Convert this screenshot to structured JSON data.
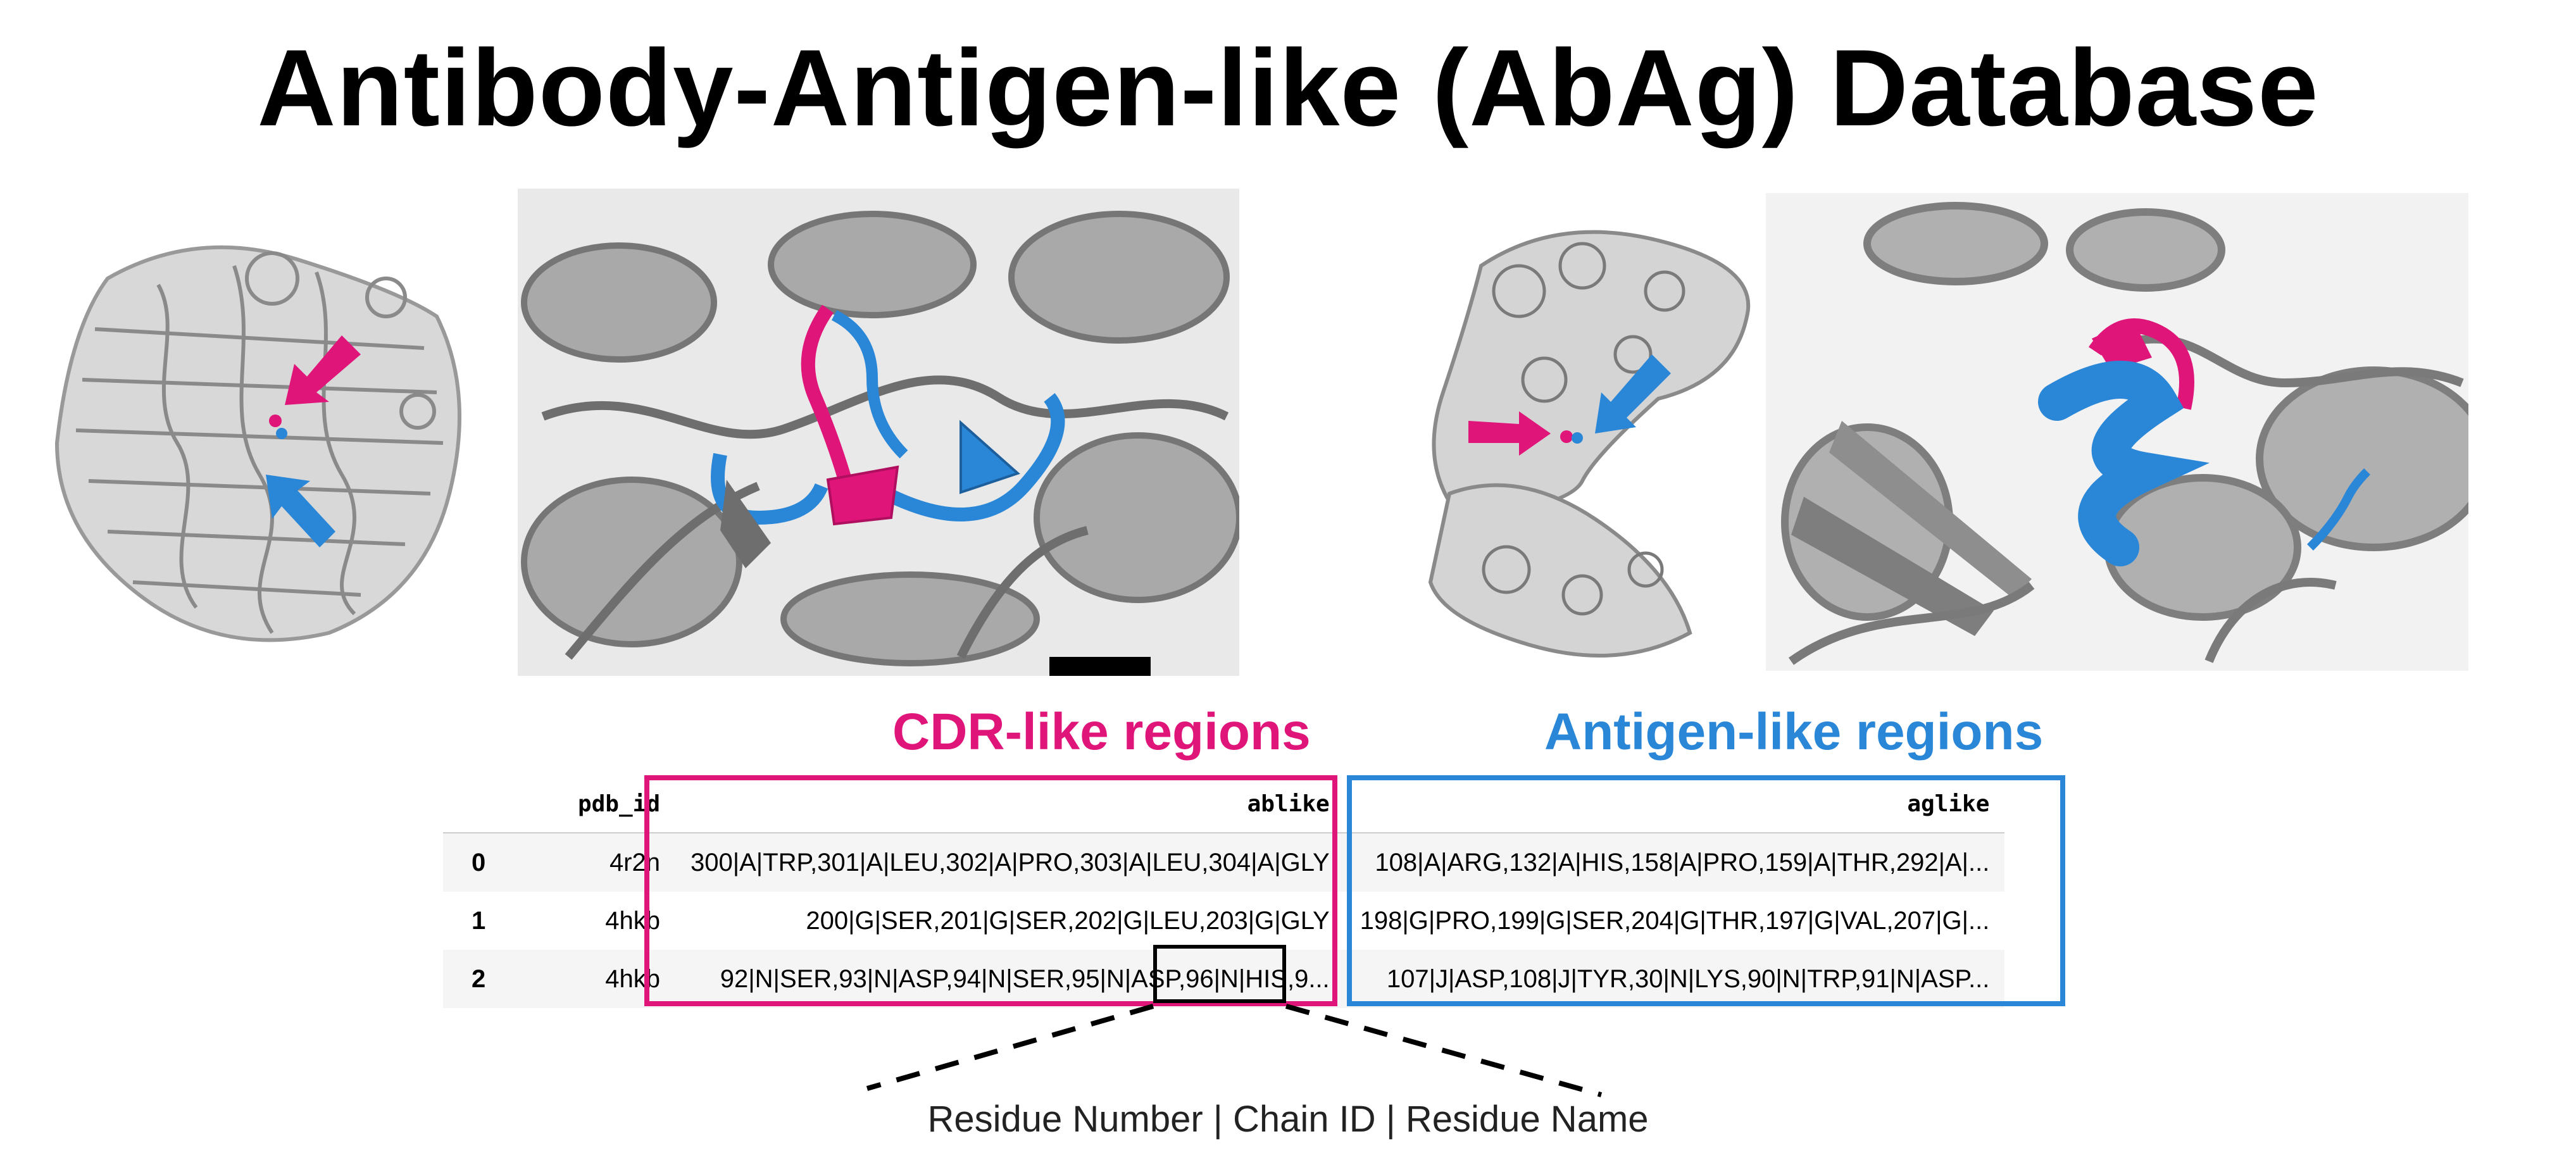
{
  "title": "Antibody-Antigen-like (AbAg) Database",
  "colors": {
    "cdr": "#e0157a",
    "antigen": "#2a87d8",
    "protein_gray": "#8a8a8a",
    "dark_gray": "#4d4d4d"
  },
  "labels": {
    "cdr": "CDR-like regions",
    "antigen": "Antigen-like regions"
  },
  "table": {
    "columns": [
      "",
      "pdb_id",
      "ablike",
      "aglike"
    ],
    "rows": [
      {
        "index": "0",
        "pdb_id": "4r2n",
        "ablike": "300|A|TRP,301|A|LEU,302|A|PRO,303|A|LEU,304|A|GLY",
        "aglike": "108|A|ARG,132|A|HIS,158|A|PRO,159|A|THR,292|A|..."
      },
      {
        "index": "1",
        "pdb_id": "4hkb",
        "ablike": "200|G|SER,201|G|SER,202|G|LEU,203|G|GLY",
        "aglike": "198|G|PRO,199|G|SER,204|G|THR,197|G|VAL,207|G|..."
      },
      {
        "index": "2",
        "pdb_id": "4hkb",
        "ablike": "92|N|SER,93|N|ASP,94|N|SER,95|N|ASP,96|N|HIS,9...",
        "aglike": "107|J|ASP,108|J|TYR,30|N|LYS,90|N|TRP,91|N|ASP..."
      }
    ]
  },
  "caption": "Residue Number | Chain ID | Residue Name"
}
